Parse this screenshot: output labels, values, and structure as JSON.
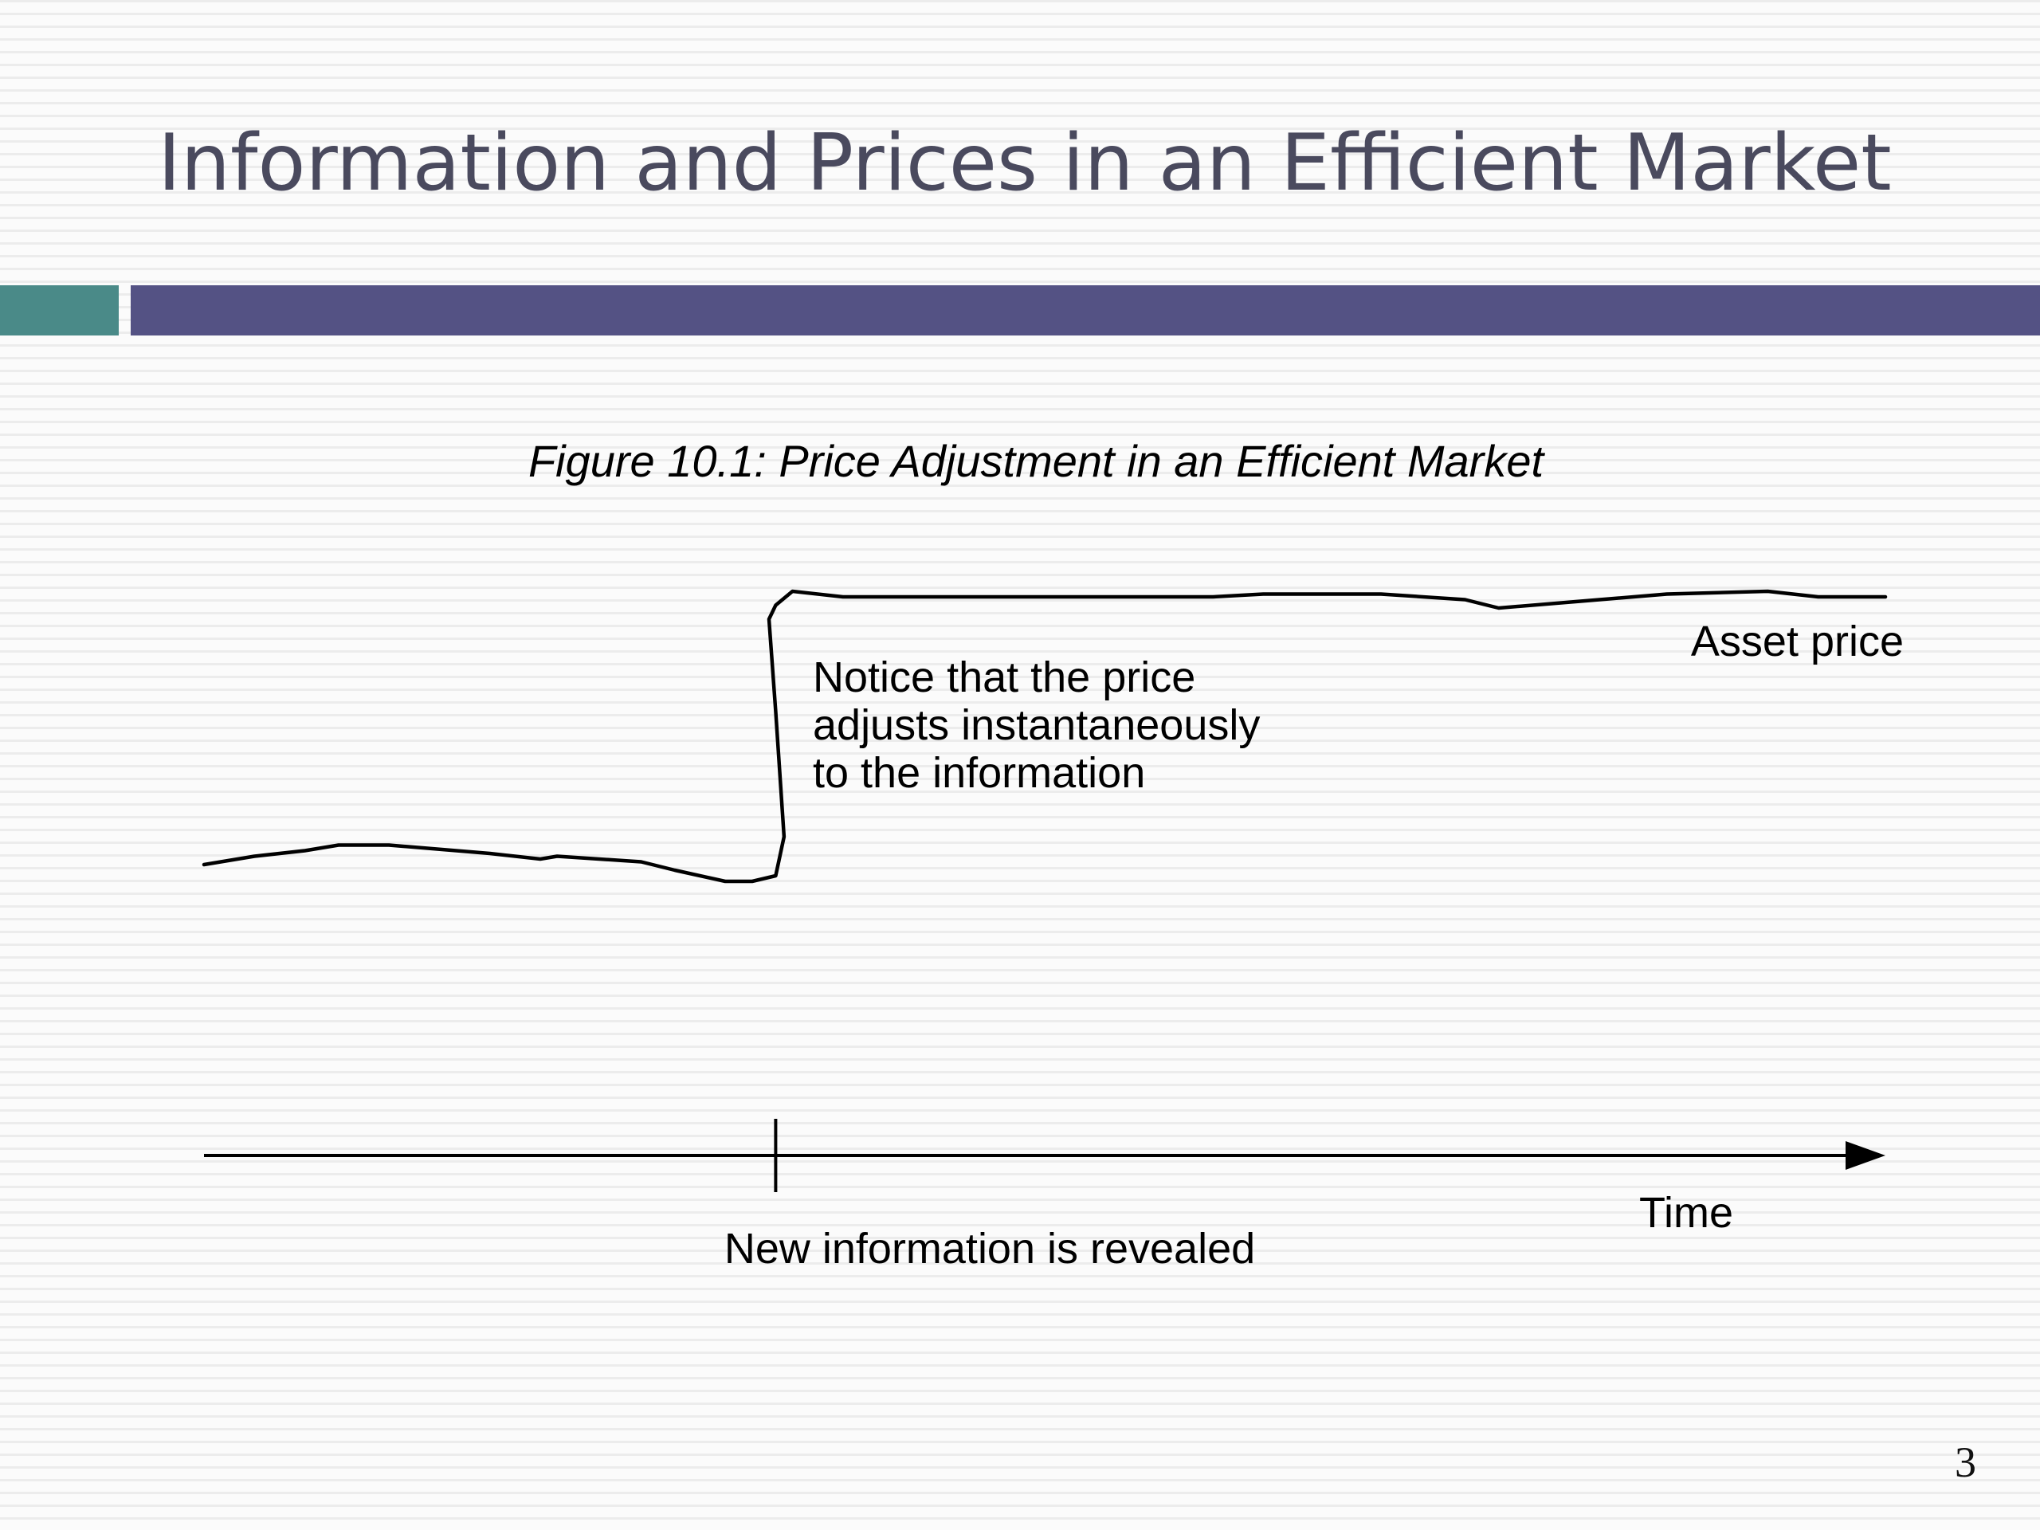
{
  "slide": {
    "title": "Information and Prices in an Efficient Market",
    "page_number": "3",
    "colors": {
      "title_text": "#4a4a5e",
      "accent_teal": "#4a8a88",
      "accent_purple": "#545284",
      "figure_ink": "#000000"
    }
  },
  "figure": {
    "caption": "Figure 10.1: Price Adjustment in an Efficient Market",
    "series_label": "Asset price",
    "annotation": {
      "lines": [
        "Notice that the price",
        "adjusts instantaneously",
        "to the information"
      ]
    },
    "x_axis_label": "Time",
    "event_label": "New information is revealed",
    "chart_data": {
      "type": "line",
      "x_unit": "time (relative, event at 0.34)",
      "y_unit": "price (relative)",
      "event_x": 0.34,
      "series": [
        {
          "name": "Asset price",
          "points": [
            [
              0.0,
              0.0
            ],
            [
              0.03,
              0.03
            ],
            [
              0.06,
              0.05
            ],
            [
              0.08,
              0.07
            ],
            [
              0.11,
              0.07
            ],
            [
              0.17,
              0.04
            ],
            [
              0.2,
              0.02
            ],
            [
              0.21,
              0.03
            ],
            [
              0.26,
              0.01
            ],
            [
              0.28,
              -0.02
            ],
            [
              0.31,
              -0.06
            ],
            [
              0.326,
              -0.06
            ],
            [
              0.34,
              -0.04
            ],
            [
              0.345,
              0.1
            ],
            [
              0.34,
              0.55
            ],
            [
              0.336,
              0.88
            ],
            [
              0.34,
              0.93
            ],
            [
              0.35,
              0.98
            ],
            [
              0.38,
              0.96
            ],
            [
              0.6,
              0.96
            ],
            [
              0.63,
              0.97
            ],
            [
              0.7,
              0.97
            ],
            [
              0.75,
              0.95
            ],
            [
              0.77,
              0.92
            ],
            [
              0.83,
              0.95
            ],
            [
              0.87,
              0.97
            ],
            [
              0.93,
              0.98
            ],
            [
              0.96,
              0.96
            ],
            [
              1.0,
              0.96
            ]
          ]
        }
      ]
    }
  }
}
